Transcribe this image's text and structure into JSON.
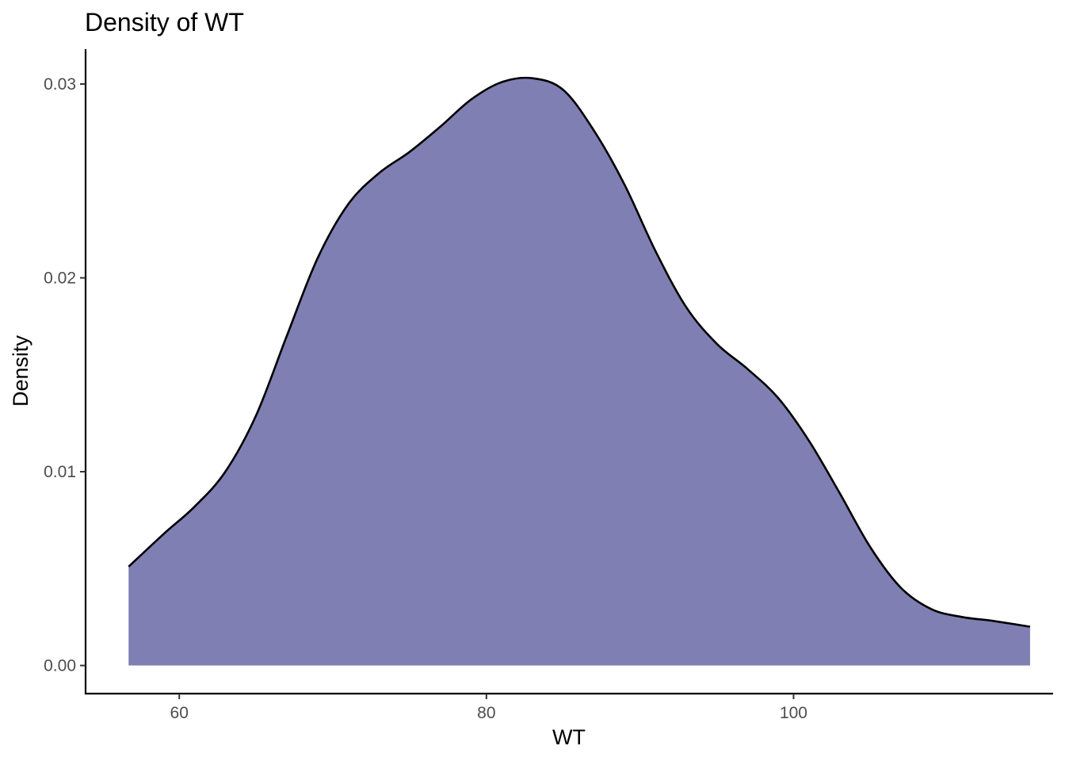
{
  "chart_data": {
    "type": "area",
    "title": "Density of WT",
    "xlabel": "WT",
    "ylabel": "Density",
    "xlim": [
      53.9,
      116.9
    ],
    "ylim": [
      -0.00145,
      0.0318
    ],
    "x_ticks": [
      {
        "value": 60,
        "label": "60"
      },
      {
        "value": 80,
        "label": "80"
      },
      {
        "value": 100,
        "label": "100"
      }
    ],
    "y_ticks": [
      {
        "value": 0.0,
        "label": "0.00"
      },
      {
        "value": 0.01,
        "label": "0.01"
      },
      {
        "value": 0.02,
        "label": "0.02"
      },
      {
        "value": 0.03,
        "label": "0.03"
      }
    ],
    "fill_color": "#7f7fb3",
    "line_color": "#000000",
    "grid": false,
    "legend": "none",
    "series": [
      {
        "x": [
          56.7,
          59,
          61,
          63,
          65,
          67,
          69,
          71,
          73,
          75,
          77,
          79,
          81,
          83,
          85,
          87,
          89,
          91,
          93,
          95,
          97,
          99,
          101,
          103,
          105,
          107,
          109,
          111,
          113,
          115.4
        ],
        "y": [
          0.0051,
          0.0068,
          0.0082,
          0.01,
          0.0129,
          0.017,
          0.021,
          0.0238,
          0.0254,
          0.0265,
          0.0278,
          0.0292,
          0.0301,
          0.0303,
          0.0297,
          0.0276,
          0.0248,
          0.0214,
          0.0185,
          0.0166,
          0.0153,
          0.0138,
          0.0116,
          0.0089,
          0.0061,
          0.004,
          0.0029,
          0.0025,
          0.0023,
          0.002
        ]
      }
    ]
  }
}
